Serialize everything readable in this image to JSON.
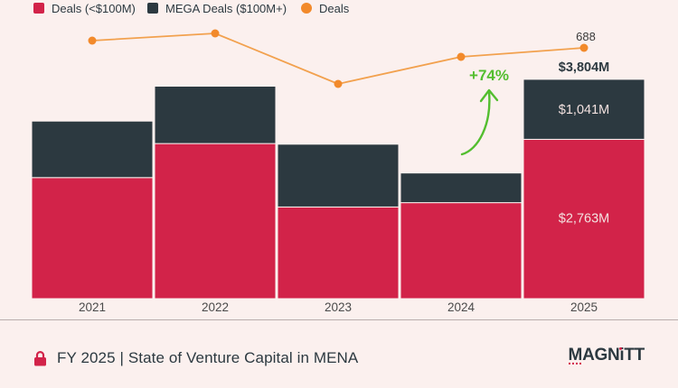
{
  "colors": {
    "background": "#FBF0EE",
    "deals_bar": "#D22349",
    "mega_bar": "#2C3940",
    "line": "#F2A14E",
    "line_dot": "#F28A2B",
    "growth_green": "#53BE2F",
    "bar_label_light": "#F3E2E0",
    "text_dark": "#2C3940",
    "brand_red": "#D22349"
  },
  "legend": {
    "items": [
      {
        "label": "Deals (<$100M)",
        "color": "#D22349",
        "shape": "square"
      },
      {
        "label": "MEGA Deals ($100M+)",
        "color": "#2C3940",
        "shape": "square"
      },
      {
        "label": "Deals",
        "color": "#F28A2B",
        "shape": "circle"
      }
    ]
  },
  "chart_data": {
    "type": "combo",
    "categories": [
      "2021",
      "2022",
      "2023",
      "2024",
      "2025"
    ],
    "series": [
      {
        "name": "Deals (<$100M)",
        "type": "bar",
        "stacked": true,
        "color": "#D22349",
        "unit": "$M",
        "values": [
          2100,
          2690,
          1590,
          1665,
          2763
        ],
        "labeled_values": {
          "2025": "$2,763M"
        }
      },
      {
        "name": "MEGA Deals ($100M+)",
        "type": "bar",
        "stacked": true,
        "color": "#2C3940",
        "unit": "$M",
        "values": [
          980,
          995,
          1090,
          515,
          1041
        ],
        "labeled_values": {
          "2025": "$1,041M"
        }
      },
      {
        "name": "Deals",
        "type": "line",
        "color": "#F28A2B",
        "unit": "count",
        "values": [
          704,
          720,
          608,
          668,
          688
        ],
        "labeled_values": {
          "2025": "688"
        }
      }
    ],
    "totals": {
      "2025": "$3,804M"
    },
    "annotations": [
      {
        "text": "+74%",
        "color": "#53BE2F",
        "meaning": "total funding growth 2024 to 2025"
      }
    ],
    "note": "Only 2025 values are labeled on the chart; other years estimated from bar/line heights.",
    "grid": false,
    "legend_position": "top-left"
  },
  "footer": {
    "title": "FY 2025 | State of Venture Capital in MENA",
    "logo": "MAGNiTT"
  }
}
